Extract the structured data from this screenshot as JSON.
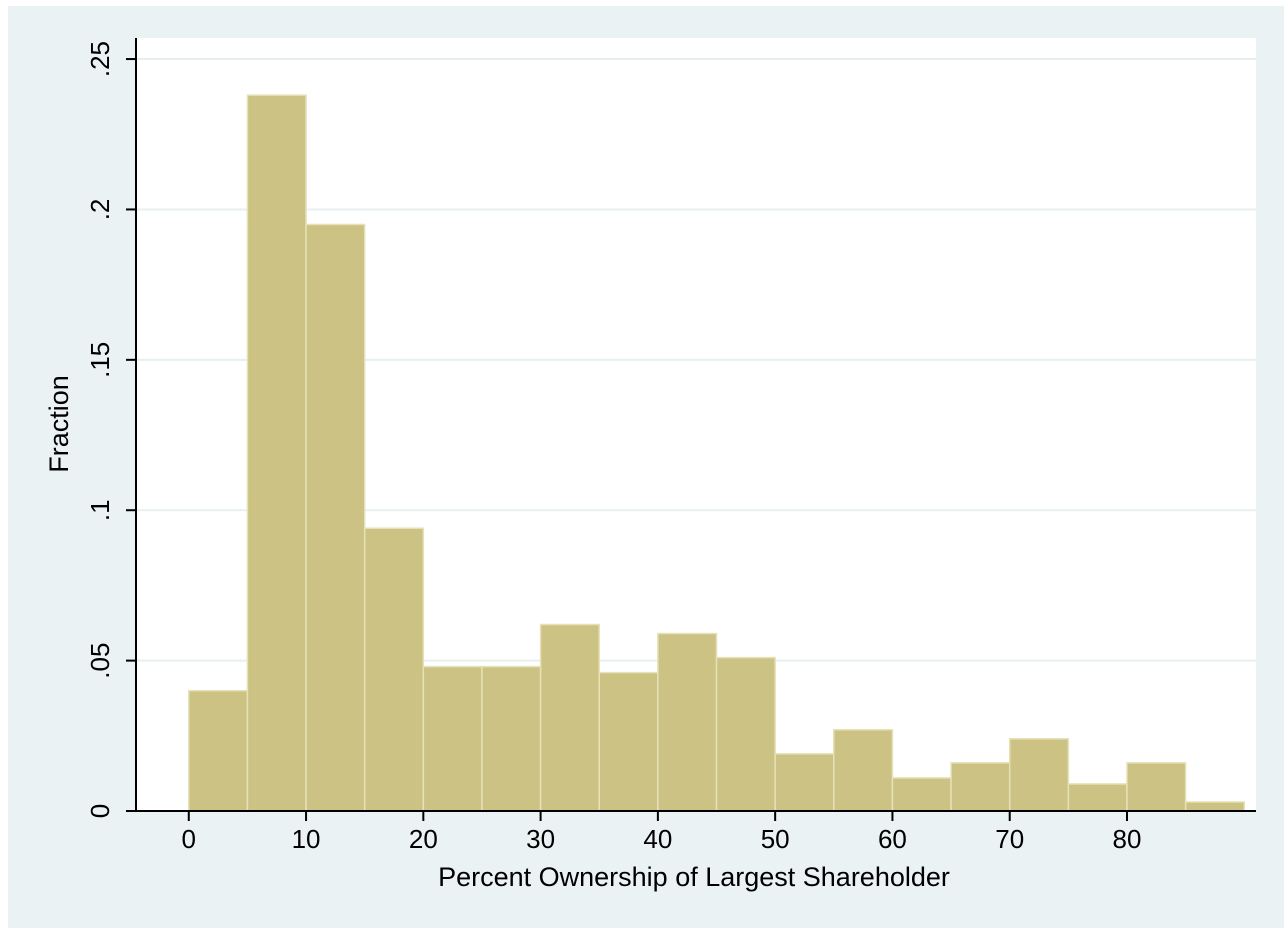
{
  "chart_data": {
    "type": "bar",
    "histogram": true,
    "title": "",
    "xlabel": "Percent Ownership of Largest Shareholder",
    "ylabel": "Fraction",
    "bin_width": 5,
    "bins": [
      {
        "start": 0,
        "end": 5,
        "value": 0.04
      },
      {
        "start": 5,
        "end": 10,
        "value": 0.238
      },
      {
        "start": 10,
        "end": 15,
        "value": 0.195
      },
      {
        "start": 15,
        "end": 20,
        "value": 0.094
      },
      {
        "start": 20,
        "end": 25,
        "value": 0.048
      },
      {
        "start": 25,
        "end": 30,
        "value": 0.048
      },
      {
        "start": 30,
        "end": 35,
        "value": 0.062
      },
      {
        "start": 35,
        "end": 40,
        "value": 0.046
      },
      {
        "start": 40,
        "end": 45,
        "value": 0.059
      },
      {
        "start": 45,
        "end": 50,
        "value": 0.051
      },
      {
        "start": 50,
        "end": 55,
        "value": 0.019
      },
      {
        "start": 55,
        "end": 60,
        "value": 0.027
      },
      {
        "start": 60,
        "end": 65,
        "value": 0.011
      },
      {
        "start": 65,
        "end": 70,
        "value": 0.016
      },
      {
        "start": 70,
        "end": 75,
        "value": 0.024
      },
      {
        "start": 75,
        "end": 80,
        "value": 0.009
      },
      {
        "start": 80,
        "end": 85,
        "value": 0.016
      },
      {
        "start": 85,
        "end": 90,
        "value": 0.003
      }
    ],
    "xlim": [
      -4.5,
      91
    ],
    "ylim": [
      0,
      0.257
    ],
    "xticks": [
      {
        "value": 0,
        "label": "0"
      },
      {
        "value": 10,
        "label": "10"
      },
      {
        "value": 20,
        "label": "20"
      },
      {
        "value": 30,
        "label": "30"
      },
      {
        "value": 40,
        "label": "40"
      },
      {
        "value": 50,
        "label": "50"
      },
      {
        "value": 60,
        "label": "60"
      },
      {
        "value": 70,
        "label": "70"
      },
      {
        "value": 80,
        "label": "80"
      }
    ],
    "yticks": [
      {
        "value": 0,
        "label": "0"
      },
      {
        "value": 0.05,
        "label": ".05"
      },
      {
        "value": 0.1,
        "label": ".1"
      },
      {
        "value": 0.15,
        "label": ".15"
      },
      {
        "value": 0.2,
        "label": ".2"
      },
      {
        "value": 0.25,
        "label": ".25"
      }
    ],
    "grid": true,
    "legend": "none",
    "colors": {
      "bar_fill": "#cbc283",
      "bar_edge": "#e6e1b8",
      "plot_background": "#ffffff",
      "outer_background": "#eaf2f3",
      "grid": "#e8eff1",
      "axis": "#000000"
    }
  }
}
